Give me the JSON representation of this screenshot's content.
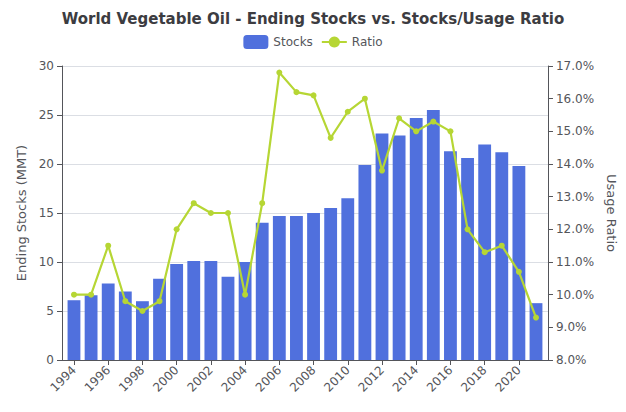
{
  "chart_data": {
    "type": "bar",
    "title": "World Vegetable Oil - Ending Stocks vs. Stocks/Usage Ratio",
    "x": [
      1994,
      1995,
      1996,
      1997,
      1998,
      1999,
      2000,
      2001,
      2002,
      2003,
      2004,
      2005,
      2006,
      2007,
      2008,
      2009,
      2010,
      2011,
      2012,
      2013,
      2014,
      2015,
      2016,
      2017,
      2018,
      2019,
      2020,
      2021
    ],
    "xlim": [
      1993.3,
      2021.7
    ],
    "xticks": [
      1994,
      1996,
      1998,
      2000,
      2002,
      2004,
      2006,
      2008,
      2010,
      2012,
      2014,
      2016,
      2018,
      2020
    ],
    "series": [
      {
        "name": "Stocks",
        "type": "bar",
        "values": [
          6.1,
          6.6,
          7.8,
          7.0,
          6.0,
          8.3,
          9.8,
          10.1,
          10.1,
          8.5,
          10.0,
          14.0,
          14.7,
          14.7,
          15.0,
          15.5,
          16.5,
          19.9,
          23.1,
          22.9,
          24.7,
          25.5,
          21.3,
          20.6,
          22.0,
          21.2,
          19.8,
          5.8
        ]
      },
      {
        "name": "Ratio",
        "type": "line",
        "axis": "y2",
        "marker": "circle",
        "values": [
          0.1,
          0.1,
          0.115,
          0.098,
          0.095,
          0.098,
          0.12,
          0.128,
          0.125,
          0.125,
          0.1,
          0.128,
          0.168,
          0.162,
          0.161,
          0.148,
          0.156,
          0.16,
          0.138,
          0.154,
          0.15,
          0.153,
          0.15,
          0.12,
          0.113,
          0.115,
          0.107,
          0.093
        ]
      }
    ],
    "ylabel": "Ending Stocks (MMT)",
    "y2label": "Usage Ratio",
    "ylim": [
      0,
      30
    ],
    "yticks": [
      0,
      5,
      10,
      15,
      20,
      25,
      30
    ],
    "y2lim": [
      0.08,
      0.17
    ],
    "y2ticks": [
      {
        "value": 0.08,
        "label": "8.0%"
      },
      {
        "value": 0.09,
        "label": "9.0%"
      },
      {
        "value": 0.1,
        "label": "10.0%"
      },
      {
        "value": 0.11,
        "label": "11.0%"
      },
      {
        "value": 0.12,
        "label": "12.0%"
      },
      {
        "value": 0.13,
        "label": "13.0%"
      },
      {
        "value": 0.14,
        "label": "14.0%"
      },
      {
        "value": 0.15,
        "label": "15.0%"
      },
      {
        "value": 0.16,
        "label": "16.0%"
      },
      {
        "value": 0.17,
        "label": "17.0%"
      }
    ],
    "grid": true,
    "legend": "top"
  }
}
